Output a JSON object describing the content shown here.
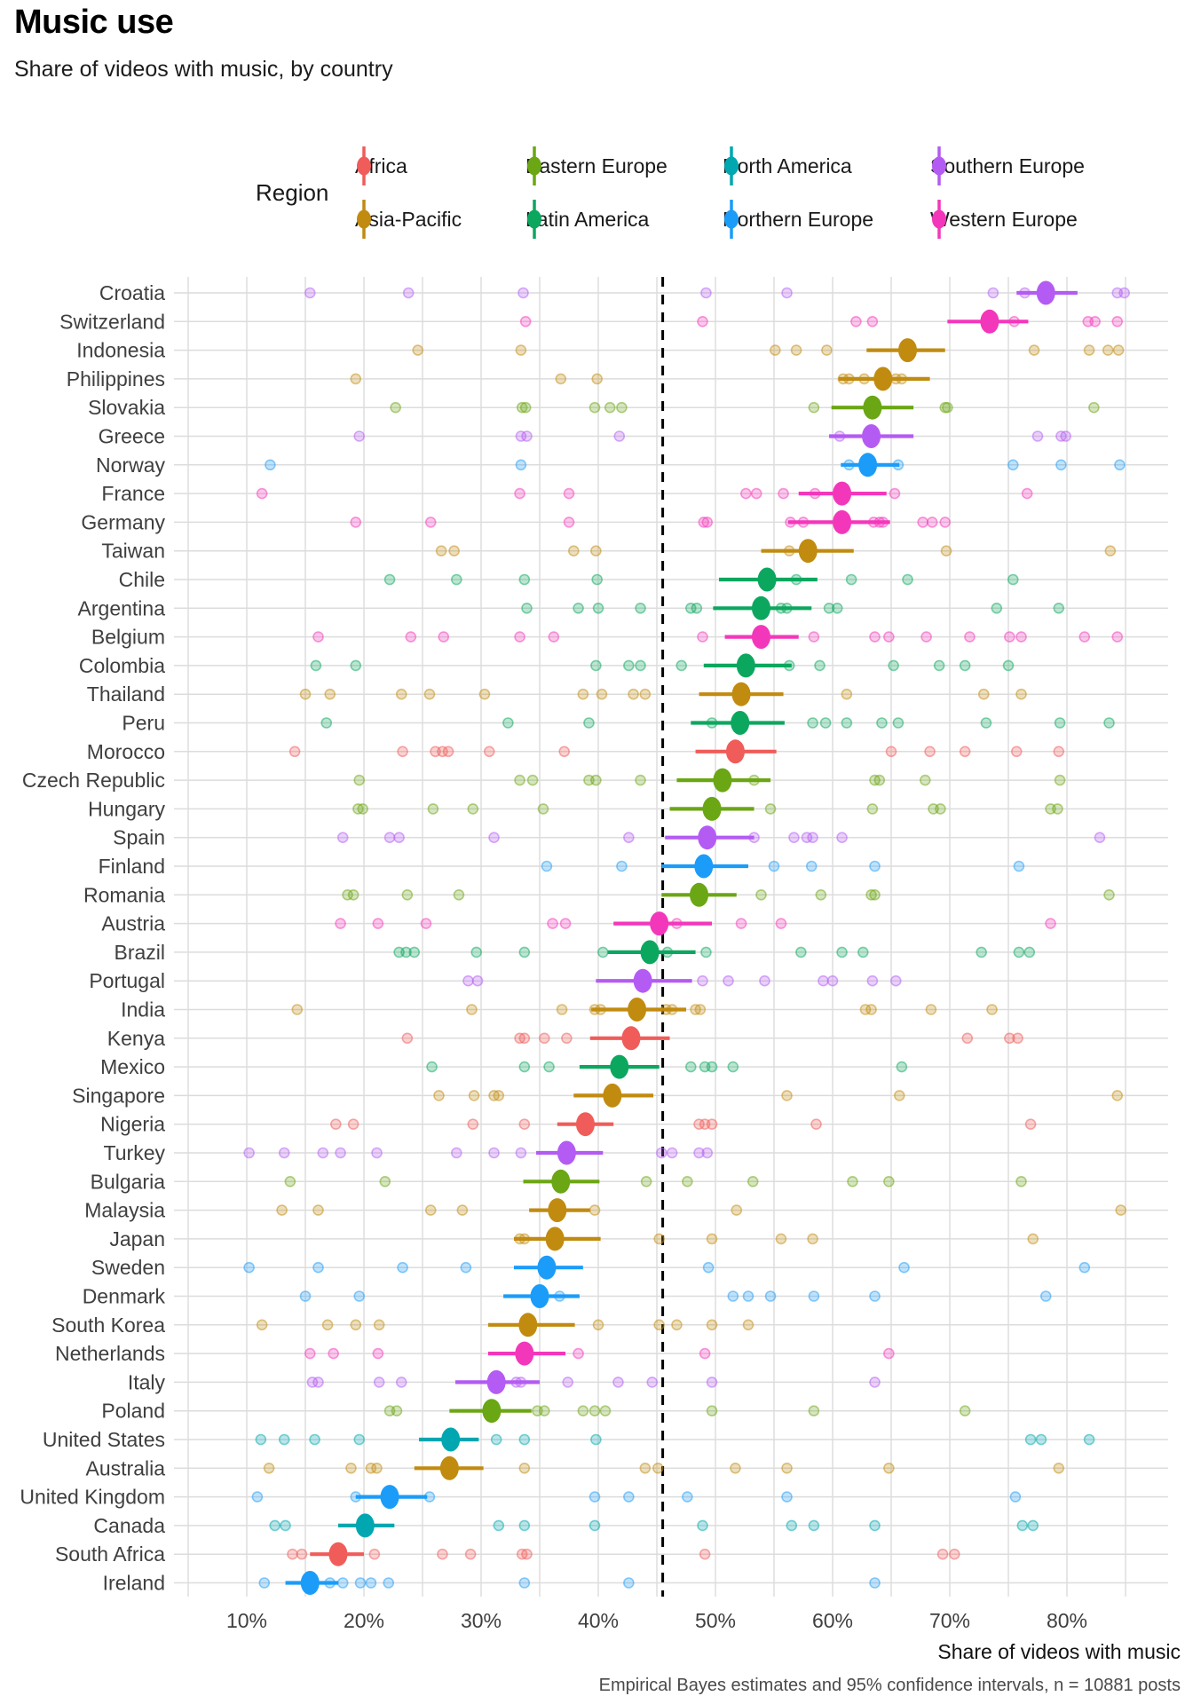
{
  "header": {
    "title": "Music use",
    "subtitle": "Share of videos with music, by country"
  },
  "legend": {
    "title": "Region"
  },
  "chart_data": {
    "type": "scatter",
    "subtype": "pointrange_dotplot",
    "title": "Music use",
    "subtitle": "Share of videos with music, by country",
    "xlabel": "Share of videos with music",
    "caption": "Empirical Bayes estimates and 95% confidence intervals, n = 10881 posts",
    "legend_title": "Region",
    "legend_position": "top",
    "grid": "major and minor vertical gridlines every 5%, one horizontal line per country",
    "x_ticks": [
      10,
      20,
      30,
      40,
      50,
      60,
      70,
      80
    ],
    "x_tick_labels": [
      "10%",
      "20%",
      "30%",
      "40%",
      "50%",
      "60%",
      "70%",
      "80%"
    ],
    "x_range": [
      3.8,
      88.5
    ],
    "reference_line_x": 45.5,
    "grid_color": "#dcdcdc",
    "reference_line_color": "#000000",
    "regions": [
      {
        "name": "Africa",
        "color": "#f05c59"
      },
      {
        "name": "Asia-Pacific",
        "color": "#c18b10"
      },
      {
        "name": "Eastern Europe",
        "color": "#6ba614"
      },
      {
        "name": "Latin America",
        "color": "#0ca75f"
      },
      {
        "name": "North America",
        "color": "#00a7b0"
      },
      {
        "name": "Northern Europe",
        "color": "#1b9cf8"
      },
      {
        "name": "Southern Europe",
        "color": "#b45bf3"
      },
      {
        "name": "Western Europe",
        "color": "#f337bb"
      }
    ],
    "countries": [
      {
        "name": "Croatia",
        "region": "Southern Europe",
        "estimate": 78.2,
        "ci": [
          75.7,
          80.9
        ],
        "points": [
          15.4,
          23.8,
          33.6,
          49.2,
          56.1,
          73.7,
          76.4,
          84.3,
          84.9
        ]
      },
      {
        "name": "Switzerland",
        "region": "Western Europe",
        "estimate": 73.4,
        "ci": [
          69.8,
          76.7
        ],
        "points": [
          33.8,
          48.9,
          62.0,
          63.4,
          75.5,
          81.8,
          82.4,
          84.3
        ]
      },
      {
        "name": "Indonesia",
        "region": "Asia-Pacific",
        "estimate": 66.4,
        "ci": [
          62.9,
          69.6
        ],
        "points": [
          24.6,
          33.4,
          55.1,
          56.9,
          59.5,
          77.2,
          81.9,
          83.5,
          84.4
        ]
      },
      {
        "name": "Philippines",
        "region": "Asia-Pacific",
        "estimate": 64.3,
        "ci": [
          60.5,
          68.3
        ],
        "points": [
          19.3,
          36.8,
          39.9,
          60.9,
          61.4,
          62.7,
          65.4,
          65.9
        ]
      },
      {
        "name": "Slovakia",
        "region": "Eastern Europe",
        "estimate": 63.4,
        "ci": [
          59.9,
          66.9
        ],
        "points": [
          22.7,
          33.5,
          33.8,
          39.7,
          41.0,
          42.0,
          58.4,
          69.6,
          69.8,
          82.3
        ]
      },
      {
        "name": "Greece",
        "region": "Southern Europe",
        "estimate": 63.3,
        "ci": [
          59.7,
          66.9
        ],
        "points": [
          19.6,
          33.4,
          33.9,
          41.8,
          60.6,
          77.5,
          79.5,
          79.9
        ]
      },
      {
        "name": "Norway",
        "region": "Northern Europe",
        "estimate": 63.0,
        "ci": [
          60.7,
          65.7
        ],
        "points": [
          12.0,
          33.4,
          61.4,
          65.6,
          75.4,
          79.5,
          84.5
        ]
      },
      {
        "name": "France",
        "region": "Western Europe",
        "estimate": 60.8,
        "ci": [
          57.1,
          64.6
        ],
        "points": [
          11.3,
          33.3,
          37.5,
          52.6,
          53.5,
          55.8,
          58.5,
          65.3,
          76.6
        ]
      },
      {
        "name": "Germany",
        "region": "Western Europe",
        "estimate": 60.8,
        "ci": [
          56.2,
          64.9
        ],
        "points": [
          19.3,
          25.7,
          37.5,
          49.0,
          49.3,
          56.4,
          57.5,
          63.5,
          64.0,
          64.3,
          67.7,
          68.5,
          69.6
        ]
      },
      {
        "name": "Taiwan",
        "region": "Asia-Pacific",
        "estimate": 57.9,
        "ci": [
          53.9,
          61.8
        ],
        "points": [
          26.6,
          27.7,
          37.9,
          39.8,
          56.3,
          69.7,
          83.7
        ]
      },
      {
        "name": "Chile",
        "region": "Latin America",
        "estimate": 54.4,
        "ci": [
          50.3,
          58.7
        ],
        "points": [
          22.2,
          27.9,
          33.7,
          39.9,
          56.9,
          61.6,
          66.4,
          75.4
        ]
      },
      {
        "name": "Argentina",
        "region": "Latin America",
        "estimate": 53.9,
        "ci": [
          49.8,
          58.2
        ],
        "points": [
          33.9,
          38.3,
          40.0,
          43.6,
          47.9,
          48.4,
          55.6,
          56.1,
          59.7,
          60.4,
          74.0,
          79.3
        ]
      },
      {
        "name": "Belgium",
        "region": "Western Europe",
        "estimate": 53.9,
        "ci": [
          50.8,
          57.1
        ],
        "points": [
          16.1,
          24.0,
          26.8,
          33.3,
          36.2,
          48.9,
          58.4,
          63.6,
          64.8,
          68.0,
          71.7,
          75.1,
          76.1,
          81.5,
          84.3
        ]
      },
      {
        "name": "Colombia",
        "region": "Latin America",
        "estimate": 52.6,
        "ci": [
          49.0,
          56.5
        ],
        "points": [
          15.9,
          19.3,
          39.8,
          42.6,
          43.6,
          47.1,
          56.3,
          58.9,
          65.2,
          69.1,
          71.3,
          75.0
        ]
      },
      {
        "name": "Thailand",
        "region": "Asia-Pacific",
        "estimate": 52.2,
        "ci": [
          48.6,
          55.8
        ],
        "points": [
          15.0,
          17.1,
          23.2,
          25.6,
          30.3,
          38.7,
          40.3,
          43.0,
          44.0,
          61.2,
          72.9,
          76.1
        ]
      },
      {
        "name": "Peru",
        "region": "Latin America",
        "estimate": 52.1,
        "ci": [
          47.9,
          55.9
        ],
        "points": [
          16.8,
          32.3,
          39.2,
          49.7,
          58.3,
          59.4,
          61.2,
          64.2,
          65.6,
          73.1,
          79.4,
          83.6
        ]
      },
      {
        "name": "Morocco",
        "region": "Africa",
        "estimate": 51.7,
        "ci": [
          48.3,
          55.2
        ],
        "points": [
          14.1,
          23.3,
          26.1,
          26.7,
          27.2,
          30.7,
          37.1,
          65.0,
          68.3,
          71.3,
          75.7,
          79.3
        ]
      },
      {
        "name": "Czech Republic",
        "region": "Eastern Europe",
        "estimate": 50.6,
        "ci": [
          46.7,
          54.7
        ],
        "points": [
          19.6,
          33.3,
          34.4,
          39.2,
          39.8,
          43.6,
          53.3,
          63.6,
          64.0,
          67.9,
          79.4
        ]
      },
      {
        "name": "Hungary",
        "region": "Eastern Europe",
        "estimate": 49.7,
        "ci": [
          46.1,
          53.3
        ],
        "points": [
          19.5,
          19.9,
          25.9,
          29.3,
          35.3,
          54.7,
          63.4,
          68.6,
          69.2,
          78.6,
          79.2
        ]
      },
      {
        "name": "Spain",
        "region": "Southern Europe",
        "estimate": 49.3,
        "ci": [
          45.7,
          53.3
        ],
        "points": [
          18.2,
          22.2,
          23.0,
          31.1,
          42.6,
          53.3,
          56.7,
          57.8,
          58.3,
          60.8,
          82.8
        ]
      },
      {
        "name": "Finland",
        "region": "Northern Europe",
        "estimate": 49.0,
        "ci": [
          45.4,
          52.8
        ],
        "points": [
          35.6,
          42.0,
          55.0,
          58.2,
          63.6,
          75.9
        ]
      },
      {
        "name": "Romania",
        "region": "Eastern Europe",
        "estimate": 48.6,
        "ci": [
          45.4,
          51.8
        ],
        "points": [
          18.6,
          19.1,
          23.7,
          28.1,
          53.9,
          59.0,
          63.3,
          63.6,
          83.6
        ]
      },
      {
        "name": "Austria",
        "region": "Western Europe",
        "estimate": 45.2,
        "ci": [
          41.3,
          49.7
        ],
        "points": [
          18.0,
          21.2,
          25.3,
          36.1,
          37.2,
          46.7,
          52.2,
          55.6,
          78.6
        ]
      },
      {
        "name": "Brazil",
        "region": "Latin America",
        "estimate": 44.4,
        "ci": [
          40.8,
          48.3
        ],
        "points": [
          23.0,
          23.6,
          24.3,
          29.6,
          33.7,
          40.4,
          45.9,
          49.2,
          57.3,
          60.8,
          62.6,
          72.7,
          75.9,
          76.8
        ]
      },
      {
        "name": "Portugal",
        "region": "Southern Europe",
        "estimate": 43.8,
        "ci": [
          39.8,
          48.0
        ],
        "points": [
          28.9,
          29.7,
          48.9,
          51.1,
          54.2,
          59.2,
          60.0,
          63.4,
          65.4
        ]
      },
      {
        "name": "India",
        "region": "Asia-Pacific",
        "estimate": 43.3,
        "ci": [
          39.4,
          47.5
        ],
        "points": [
          14.3,
          29.2,
          36.9,
          39.7,
          40.2,
          45.8,
          46.3,
          48.3,
          48.7,
          62.8,
          63.3,
          68.4,
          73.6
        ]
      },
      {
        "name": "Kenya",
        "region": "Africa",
        "estimate": 42.8,
        "ci": [
          39.3,
          46.1
        ],
        "points": [
          23.7,
          33.3,
          33.7,
          35.4,
          37.3,
          71.5,
          75.1,
          75.8
        ]
      },
      {
        "name": "Mexico",
        "region": "Latin America",
        "estimate": 41.8,
        "ci": [
          38.4,
          45.2
        ],
        "points": [
          25.8,
          33.7,
          35.8,
          47.9,
          49.1,
          49.7,
          51.5,
          65.9
        ]
      },
      {
        "name": "Singapore",
        "region": "Asia-Pacific",
        "estimate": 41.2,
        "ci": [
          37.9,
          44.7
        ],
        "points": [
          26.4,
          29.4,
          31.1,
          31.5,
          56.1,
          65.7,
          84.3
        ]
      },
      {
        "name": "Nigeria",
        "region": "Africa",
        "estimate": 38.9,
        "ci": [
          36.5,
          41.3
        ],
        "points": [
          17.6,
          19.1,
          29.3,
          33.7,
          48.6,
          49.1,
          49.7,
          58.6,
          76.9
        ]
      },
      {
        "name": "Turkey",
        "region": "Southern Europe",
        "estimate": 37.3,
        "ci": [
          34.7,
          40.4
        ],
        "points": [
          10.2,
          13.2,
          16.5,
          18.0,
          21.1,
          27.9,
          31.1,
          33.4,
          45.4,
          46.3,
          48.6,
          49.3
        ]
      },
      {
        "name": "Bulgaria",
        "region": "Eastern Europe",
        "estimate": 36.8,
        "ci": [
          33.6,
          40.1
        ],
        "points": [
          13.7,
          21.8,
          44.1,
          47.6,
          53.2,
          61.7,
          64.8,
          76.1
        ]
      },
      {
        "name": "Malaysia",
        "region": "Asia-Pacific",
        "estimate": 36.5,
        "ci": [
          34.1,
          39.3
        ],
        "points": [
          13.0,
          16.1,
          25.7,
          28.4,
          39.7,
          51.8,
          84.6
        ]
      },
      {
        "name": "Japan",
        "region": "Asia-Pacific",
        "estimate": 36.3,
        "ci": [
          32.8,
          40.2
        ],
        "points": [
          33.3,
          33.7,
          45.2,
          49.7,
          55.6,
          58.3,
          77.1
        ]
      },
      {
        "name": "Sweden",
        "region": "Northern Europe",
        "estimate": 35.6,
        "ci": [
          32.8,
          38.7
        ],
        "points": [
          10.2,
          16.1,
          23.3,
          28.7,
          49.4,
          66.1,
          81.5
        ]
      },
      {
        "name": "Denmark",
        "region": "Northern Europe",
        "estimate": 35.0,
        "ci": [
          31.9,
          38.4
        ],
        "points": [
          15.0,
          19.6,
          36.7,
          51.5,
          52.8,
          54.7,
          58.4,
          63.6,
          78.2
        ]
      },
      {
        "name": "South Korea",
        "region": "Asia-Pacific",
        "estimate": 34.0,
        "ci": [
          30.6,
          38.0
        ],
        "points": [
          11.3,
          16.9,
          19.3,
          21.3,
          40.0,
          45.2,
          46.7,
          49.7,
          52.8
        ]
      },
      {
        "name": "Netherlands",
        "region": "Western Europe",
        "estimate": 33.7,
        "ci": [
          30.6,
          37.2
        ],
        "points": [
          15.4,
          17.4,
          21.2,
          38.3,
          49.1,
          64.8
        ]
      },
      {
        "name": "Italy",
        "region": "Southern Europe",
        "estimate": 31.3,
        "ci": [
          27.8,
          35.0
        ],
        "points": [
          15.6,
          16.1,
          21.3,
          23.2,
          33.0,
          33.4,
          37.4,
          41.7,
          44.6,
          49.7,
          63.6
        ]
      },
      {
        "name": "Poland",
        "region": "Eastern Europe",
        "estimate": 30.9,
        "ci": [
          27.3,
          34.3
        ],
        "points": [
          22.2,
          22.8,
          34.8,
          35.4,
          38.7,
          39.7,
          40.6,
          49.7,
          58.4,
          71.3
        ]
      },
      {
        "name": "United States",
        "region": "North America",
        "estimate": 27.4,
        "ci": [
          24.7,
          29.8
        ],
        "points": [
          11.2,
          13.2,
          15.8,
          19.6,
          31.3,
          33.7,
          39.8,
          76.9,
          77.8,
          81.9
        ]
      },
      {
        "name": "Australia",
        "region": "Asia-Pacific",
        "estimate": 27.3,
        "ci": [
          24.3,
          30.2
        ],
        "points": [
          11.9,
          18.9,
          20.6,
          21.1,
          33.7,
          44.0,
          45.1,
          51.7,
          56.1,
          64.8,
          79.3
        ]
      },
      {
        "name": "United Kingdom",
        "region": "Northern Europe",
        "estimate": 22.2,
        "ci": [
          19.3,
          25.4
        ],
        "points": [
          10.9,
          19.3,
          25.6,
          39.7,
          42.6,
          47.6,
          56.1,
          75.6
        ]
      },
      {
        "name": "Canada",
        "region": "North America",
        "estimate": 20.1,
        "ci": [
          17.8,
          22.6
        ],
        "points": [
          12.4,
          13.3,
          31.5,
          33.7,
          39.7,
          48.9,
          56.5,
          58.4,
          63.6,
          76.2,
          77.1
        ]
      },
      {
        "name": "South Africa",
        "region": "Africa",
        "estimate": 17.8,
        "ci": [
          15.4,
          20.0
        ],
        "points": [
          13.9,
          14.7,
          20.9,
          26.7,
          29.1,
          33.5,
          33.9,
          49.1,
          69.4,
          70.4
        ]
      },
      {
        "name": "Ireland",
        "region": "Northern Europe",
        "estimate": 15.4,
        "ci": [
          13.3,
          17.8
        ],
        "points": [
          11.5,
          17.1,
          18.2,
          19.7,
          20.6,
          22.1,
          33.7,
          42.6,
          63.6
        ]
      }
    ]
  }
}
